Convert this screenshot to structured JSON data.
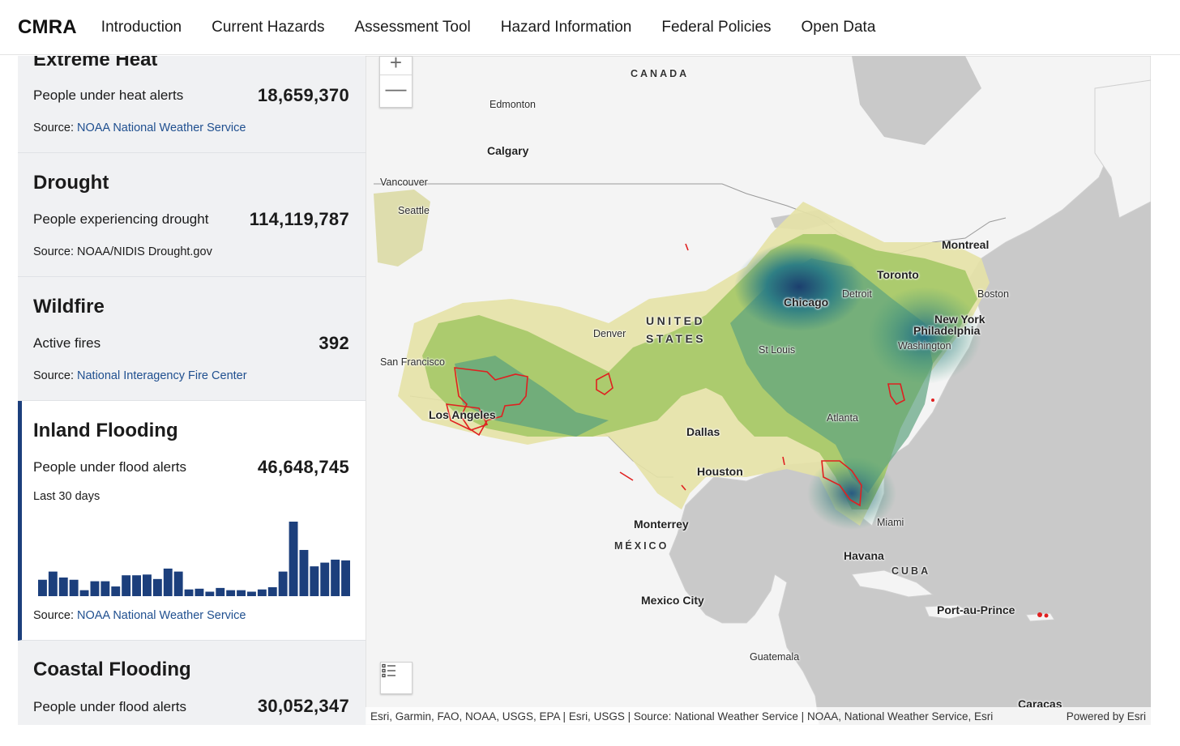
{
  "nav": {
    "brand": "CMRA",
    "links": [
      "Introduction",
      "Current Hazards",
      "Assessment Tool",
      "Hazard Information",
      "Federal Policies",
      "Open Data"
    ]
  },
  "sidebar": {
    "cards": [
      {
        "title": "Extreme Heat",
        "metric_label": "People under heat alerts",
        "metric_value": "18,659,370",
        "source_prefix": "Source: ",
        "source_link": "NOAA National Weather Service"
      },
      {
        "title": "Drought",
        "metric_label": "People experiencing drought",
        "metric_value": "114,119,787",
        "source_prefix": "Source: NOAA/NIDIS Drought.gov",
        "source_link": ""
      },
      {
        "title": "Wildfire",
        "metric_label": "Active fires",
        "metric_value": "392",
        "source_prefix": "Source: ",
        "source_link": "National Interagency Fire Center"
      },
      {
        "title": "Inland Flooding",
        "metric_label": "People under flood alerts",
        "metric_value": "46,648,745",
        "sub_label": "Last 30 days",
        "source_prefix": "Source: ",
        "source_link": "NOAA National Weather Service"
      },
      {
        "title": "Coastal Flooding",
        "metric_label": "People under flood alerts",
        "metric_value": "30,052,347"
      }
    ],
    "flood_history": [
      0.22,
      0.33,
      0.25,
      0.22,
      0.08,
      0.2,
      0.2,
      0.13,
      0.28,
      0.28,
      0.29,
      0.23,
      0.37,
      0.33,
      0.09,
      0.1,
      0.06,
      0.11,
      0.08,
      0.08,
      0.06,
      0.09,
      0.12,
      0.33,
      1.0,
      0.62,
      0.4,
      0.45,
      0.49,
      0.48
    ]
  },
  "map": {
    "zoom_in": "+",
    "zoom_out": "—",
    "labels": {
      "canada": "CANADA",
      "united": "UNITED",
      "states": "STATES",
      "mexico": "MÉXICO",
      "cuba": "CUBA",
      "edmonton": "Edmonton",
      "calgary": "Calgary",
      "vancouver": "Vancouver",
      "seattle": "Seattle",
      "san_francisco": "San Francisco",
      "los_angeles": "Los Angeles",
      "denver": "Denver",
      "dallas": "Dallas",
      "houston": "Houston",
      "monterrey": "Monterrey",
      "mexico_city": "Mexico City",
      "guatemala": "Guatemala",
      "chicago": "Chicago",
      "detroit": "Detroit",
      "toronto": "Toronto",
      "montreal": "Montreal",
      "boston": "Boston",
      "new_york": "New York",
      "philadelphia": "Philadelphia",
      "washington": "Washington",
      "st_louis": "St Louis",
      "atlanta": "Atlanta",
      "miami": "Miami",
      "havana": "Havana",
      "port_au_prince": "Port-au-Prince",
      "caracas": "Caracas"
    },
    "attribution": "Esri, Garmin, FAO, NOAA, USGS, EPA | Esri, USGS | Source: National Weather Service | NOAA, National Weather Service, Esri",
    "powered_by": "Powered by Esri",
    "colors": {
      "ocean": "#c9c9c9",
      "land": "#f4f4f4",
      "flood_low": "#e6e2a6",
      "flood_mid": "#a9c96a",
      "flood_high": "#3f9a7a",
      "flood_max": "#1c4a7a",
      "fire": "#e02020"
    }
  }
}
